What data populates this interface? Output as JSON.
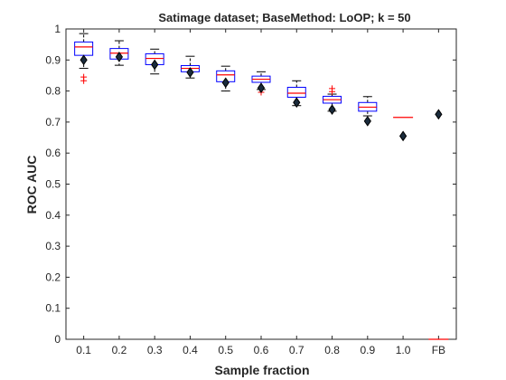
{
  "chart_data": {
    "type": "boxplot",
    "title": "Satimage dataset; BaseMethod: LoOP; k = 50",
    "xlabel": "Sample fraction",
    "ylabel": "ROC AUC",
    "ylim": [
      0,
      1
    ],
    "yticks": [
      0,
      0.1,
      0.2,
      0.3,
      0.4,
      0.5,
      0.6,
      0.7,
      0.8,
      0.9,
      1
    ],
    "ytick_labels": [
      "0",
      "0.1",
      "0.2",
      "0.3",
      "0.4",
      "0.5",
      "0.6",
      "0.7",
      "0.8",
      "0.9",
      "1"
    ],
    "categories": [
      "0.1",
      "0.2",
      "0.3",
      "0.4",
      "0.5",
      "0.6",
      "0.7",
      "0.8",
      "0.9",
      "1.0",
      "FB"
    ],
    "boxes": [
      {
        "whisker_low": 0.873,
        "q1": 0.915,
        "median": 0.942,
        "q3": 0.958,
        "whisker_high": 0.985,
        "outliers": [
          0.833,
          0.845
        ],
        "marker": 0.9
      },
      {
        "whisker_low": 0.883,
        "q1": 0.903,
        "median": 0.922,
        "q3": 0.937,
        "whisker_high": 0.962,
        "outliers": [],
        "marker": 0.91
      },
      {
        "whisker_low": 0.855,
        "q1": 0.885,
        "median": 0.905,
        "q3": 0.92,
        "whisker_high": 0.935,
        "outliers": [],
        "marker": 0.885
      },
      {
        "whisker_low": 0.842,
        "q1": 0.862,
        "median": 0.873,
        "q3": 0.882,
        "whisker_high": 0.912,
        "outliers": [],
        "marker": 0.86
      },
      {
        "whisker_low": 0.8,
        "q1": 0.83,
        "median": 0.852,
        "q3": 0.865,
        "whisker_high": 0.88,
        "outliers": [],
        "marker": 0.827
      },
      {
        "whisker_low": 0.805,
        "q1": 0.828,
        "median": 0.838,
        "q3": 0.848,
        "whisker_high": 0.862,
        "outliers": [
          0.796
        ],
        "marker": 0.81
      },
      {
        "whisker_low": 0.753,
        "q1": 0.78,
        "median": 0.793,
        "q3": 0.812,
        "whisker_high": 0.833,
        "outliers": [],
        "marker": 0.763
      },
      {
        "whisker_low": 0.735,
        "q1": 0.761,
        "median": 0.772,
        "q3": 0.783,
        "whisker_high": 0.79,
        "outliers": [
          0.798,
          0.808
        ],
        "marker": 0.74
      },
      {
        "whisker_low": 0.72,
        "q1": 0.735,
        "median": 0.748,
        "q3": 0.763,
        "whisker_high": 0.782,
        "outliers": [],
        "marker": 0.703
      },
      {
        "whisker_low": null,
        "q1": null,
        "median": 0.715,
        "q3": null,
        "whisker_high": null,
        "outliers": [],
        "marker": 0.655
      },
      {
        "whisker_low": null,
        "q1": null,
        "median": 0.0,
        "q3": null,
        "whisker_high": null,
        "outliers": [],
        "marker": 0.725
      }
    ],
    "colors": {
      "box": "#0000ff",
      "median": "#ff0000",
      "outlier": "#ff0000",
      "whisker": "#000000",
      "marker_fill": "#1a2b3c",
      "marker_edge": "#000000",
      "axis": "#262626"
    },
    "grid": false,
    "legend": null
  }
}
